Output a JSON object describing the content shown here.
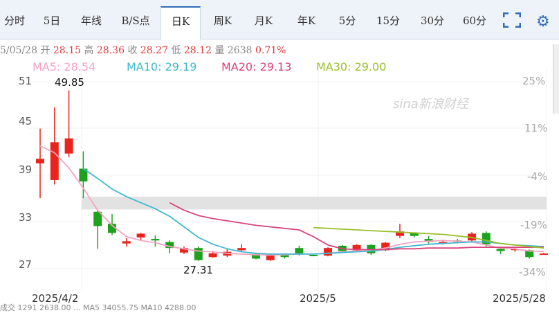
{
  "tabs": [
    {
      "label": "分时",
      "active": false
    },
    {
      "label": "5日",
      "active": false
    },
    {
      "label": "年线",
      "active": false
    },
    {
      "label": "B/S点",
      "active": false
    },
    {
      "label": "日K",
      "active": true
    },
    {
      "label": "周K",
      "active": false
    },
    {
      "label": "月K",
      "active": false
    },
    {
      "label": "年K",
      "active": false
    },
    {
      "label": "5分",
      "active": false
    },
    {
      "label": "15分",
      "active": false
    },
    {
      "label": "30分",
      "active": false
    },
    {
      "label": "60分",
      "active": false
    }
  ],
  "info_bar": {
    "date": "5/05/28",
    "open_label": "开",
    "open": "28.15",
    "high_label": "高",
    "high": "28.36",
    "close_label": "收",
    "close": "28.27",
    "low_label": "低",
    "low": "28.12",
    "volume_label": "量",
    "volume": "2638",
    "change": "0.71%"
  },
  "ma_legend": [
    {
      "label": "MA5: 28.54",
      "color": "#f5a3c0"
    },
    {
      "label": "MA10: 29.19",
      "color": "#3fb8d0"
    },
    {
      "label": "MA20: 29.13",
      "color": "#d8447a"
    },
    {
      "label": "MA30: 29.00",
      "color": "#9abf2a"
    }
  ],
  "annotations": {
    "high": "49.85",
    "low": "27.31"
  },
  "watermark": "sina新浪财经",
  "footer_text": "成交 1291 2638.00  ... MA5 34055.75  MA10 4288.00",
  "colors": {
    "up": "#e8241c",
    "down": "#1ea21e",
    "band": "#e2e2e2"
  },
  "chart_data": {
    "type": "candlestick",
    "y_ticks": [
      "51",
      "45",
      "39",
      "33",
      "27"
    ],
    "pct_ticks": [
      "25%",
      "11%",
      "-4%",
      "-19%",
      "-34%"
    ],
    "x_ticks": [
      "2025/4/2",
      "2025/5",
      "2025/5/28"
    ],
    "ylim": [
      25.5,
      51.5
    ],
    "candles": [
      {
        "o": 40.2,
        "c": 40.8,
        "h": 44.8,
        "l": 35.6
      },
      {
        "o": 38.0,
        "c": 43.0,
        "h": 47.6,
        "l": 37.4
      },
      {
        "o": 41.5,
        "c": 43.5,
        "h": 49.85,
        "l": 41.0
      },
      {
        "o": 39.5,
        "c": 37.8,
        "h": 41.8,
        "l": 35.6
      },
      {
        "o": 33.8,
        "c": 31.9,
        "h": 34.0,
        "l": 28.9
      },
      {
        "o": 32.2,
        "c": 31.0,
        "h": 33.5,
        "l": 30.7
      },
      {
        "o": 29.6,
        "c": 29.9,
        "h": 30.3,
        "l": 29.2
      },
      {
        "o": 30.4,
        "c": 30.9,
        "h": 31.0,
        "l": 30.1
      },
      {
        "o": 30.2,
        "c": 30.0,
        "h": 30.7,
        "l": 29.2
      },
      {
        "o": 29.8,
        "c": 29.0,
        "h": 30.0,
        "l": 28.3
      },
      {
        "o": 28.4,
        "c": 29.0,
        "h": 29.2,
        "l": 28.2
      },
      {
        "o": 29.0,
        "c": 27.4,
        "h": 29.2,
        "l": 27.31
      },
      {
        "o": 27.8,
        "c": 28.3,
        "h": 28.6,
        "l": 27.7
      },
      {
        "o": 28.0,
        "c": 28.5,
        "h": 28.9,
        "l": 27.8
      },
      {
        "o": 28.7,
        "c": 29.0,
        "h": 29.5,
        "l": 28.5
      },
      {
        "o": 28.2,
        "c": 27.6,
        "h": 28.4,
        "l": 27.5
      },
      {
        "o": 27.4,
        "c": 28.0,
        "h": 28.1,
        "l": 27.3
      },
      {
        "o": 28.2,
        "c": 27.8,
        "h": 28.3,
        "l": 27.6
      },
      {
        "o": 29.0,
        "c": 28.3,
        "h": 29.3,
        "l": 28.0
      },
      {
        "o": 28.1,
        "c": 28.0,
        "h": 28.2,
        "l": 27.9
      },
      {
        "o": 28.0,
        "c": 29.0,
        "h": 29.1,
        "l": 27.9
      },
      {
        "o": 29.3,
        "c": 28.6,
        "h": 29.4,
        "l": 28.4
      },
      {
        "o": 28.7,
        "c": 29.4,
        "h": 29.5,
        "l": 28.6
      },
      {
        "o": 29.4,
        "c": 28.3,
        "h": 29.5,
        "l": 28.1
      },
      {
        "o": 28.7,
        "c": 29.7,
        "h": 29.8,
        "l": 28.6
      },
      {
        "o": 30.6,
        "c": 31.2,
        "h": 32.2,
        "l": 30.3
      },
      {
        "o": 31.0,
        "c": 30.6,
        "h": 31.1,
        "l": 30.4
      },
      {
        "o": 30.2,
        "c": 29.8,
        "h": 30.6,
        "l": 29.6
      },
      {
        "o": 29.6,
        "c": 29.8,
        "h": 30.1,
        "l": 29.5
      },
      {
        "o": 30.0,
        "c": 29.8,
        "h": 30.2,
        "l": 29.6
      },
      {
        "o": 30.0,
        "c": 30.9,
        "h": 31.1,
        "l": 29.9
      },
      {
        "o": 31.0,
        "c": 29.5,
        "h": 31.2,
        "l": 29.2
      },
      {
        "o": 28.9,
        "c": 28.6,
        "h": 29.1,
        "l": 28.2
      },
      {
        "o": 28.8,
        "c": 28.9,
        "h": 29.1,
        "l": 28.5
      },
      {
        "o": 28.7,
        "c": 27.8,
        "h": 28.8,
        "l": 27.6
      },
      {
        "o": 28.15,
        "c": 28.27,
        "h": 28.36,
        "l": 28.12
      }
    ],
    "band": [
      34.1,
      35.8
    ],
    "ma5": [
      42.5,
      41.6,
      39.6,
      36.9,
      34.0,
      32.0,
      30.5,
      30.0,
      29.7,
      29.2,
      28.9,
      28.6,
      28.5,
      28.3,
      28.2,
      28.1,
      28.1,
      28.1,
      28.2,
      28.2,
      28.3,
      28.5,
      28.6,
      28.7,
      29.0,
      29.5,
      29.8,
      29.9,
      30.0,
      29.9,
      29.8,
      29.4,
      29.0,
      28.9,
      28.6,
      28.54
    ],
    "ma10": [
      null,
      null,
      null,
      39.5,
      38.2,
      36.8,
      35.8,
      35.0,
      34.2,
      33.2,
      31.8,
      30.4,
      29.5,
      28.9,
      28.5,
      28.3,
      28.2,
      28.2,
      28.2,
      28.2,
      28.3,
      28.4,
      28.5,
      28.6,
      28.8,
      29.1,
      29.3,
      29.5,
      29.6,
      29.7,
      29.8,
      29.8,
      29.6,
      29.4,
      29.3,
      29.19
    ],
    "ma20": [
      null,
      null,
      null,
      null,
      null,
      null,
      null,
      null,
      null,
      35.0,
      34.0,
      33.3,
      32.9,
      32.6,
      32.3,
      32.0,
      31.8,
      31.6,
      31.4,
      30.5,
      29.4,
      28.9,
      28.8,
      28.8,
      28.8,
      28.9,
      28.9,
      29.0,
      29.0,
      29.0,
      29.1,
      29.1,
      29.1,
      29.1,
      29.1,
      29.13
    ],
    "ma30": [
      null,
      null,
      null,
      null,
      null,
      null,
      null,
      null,
      null,
      null,
      null,
      null,
      null,
      null,
      null,
      null,
      null,
      null,
      null,
      31.7,
      31.6,
      31.5,
      31.4,
      31.3,
      31.2,
      31.1,
      31.0,
      30.9,
      30.8,
      30.6,
      30.4,
      30.0,
      29.6,
      29.4,
      29.2,
      29.0
    ]
  }
}
